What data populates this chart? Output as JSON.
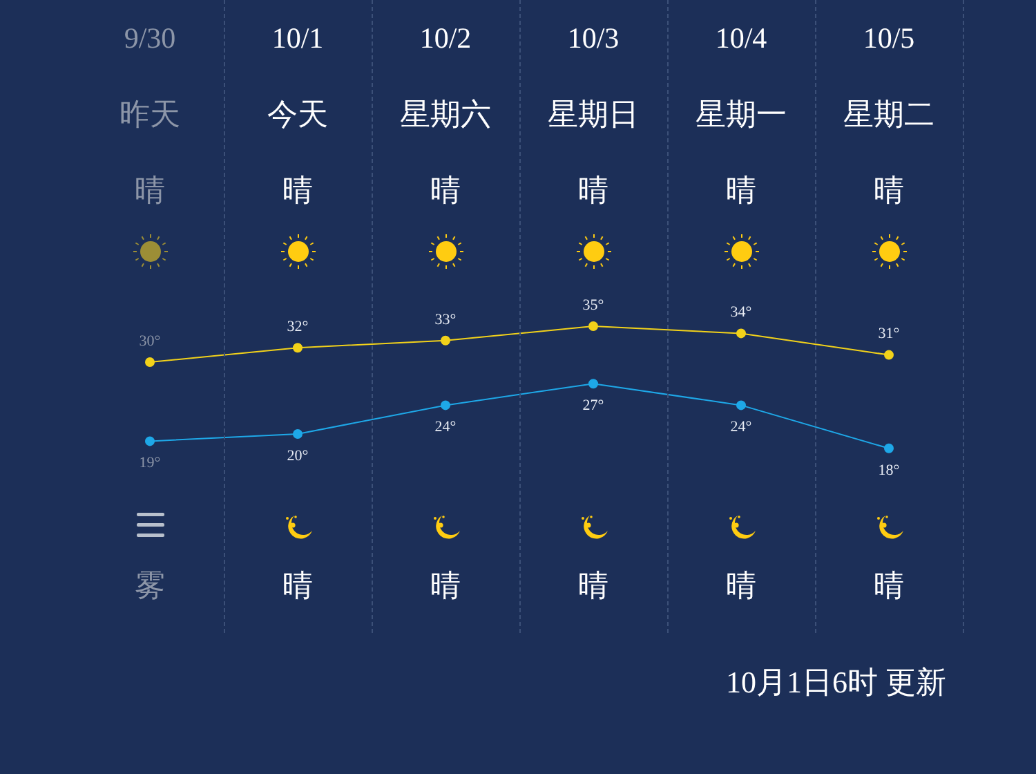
{
  "chart_data": {
    "type": "line",
    "categories": [
      "9/30",
      "10/1",
      "10/2",
      "10/3",
      "10/4",
      "10/5"
    ],
    "series": [
      {
        "color": "#f2d21a",
        "values": [
          30,
          32,
          33,
          35,
          34,
          31
        ],
        "value_labels": [
          "30°",
          "32°",
          "33°",
          "35°",
          "34°",
          "31°"
        ]
      },
      {
        "color": "#1ea8e8",
        "values": [
          19,
          20,
          24,
          27,
          24,
          18
        ],
        "value_labels": [
          "19°",
          "20°",
          "24°",
          "27°",
          "24°",
          "18°"
        ]
      }
    ],
    "marker": "circle",
    "line_style": "solid",
    "annotations": [
      "昨天",
      "今天",
      "星期六",
      "星期日",
      "星期一",
      "星期二",
      "晴",
      "晴",
      "晴",
      "晴",
      "晴",
      "晴",
      "雾",
      "晴",
      "晴",
      "晴",
      "晴",
      "晴",
      "10月1日6时 更新"
    ]
  }
}
